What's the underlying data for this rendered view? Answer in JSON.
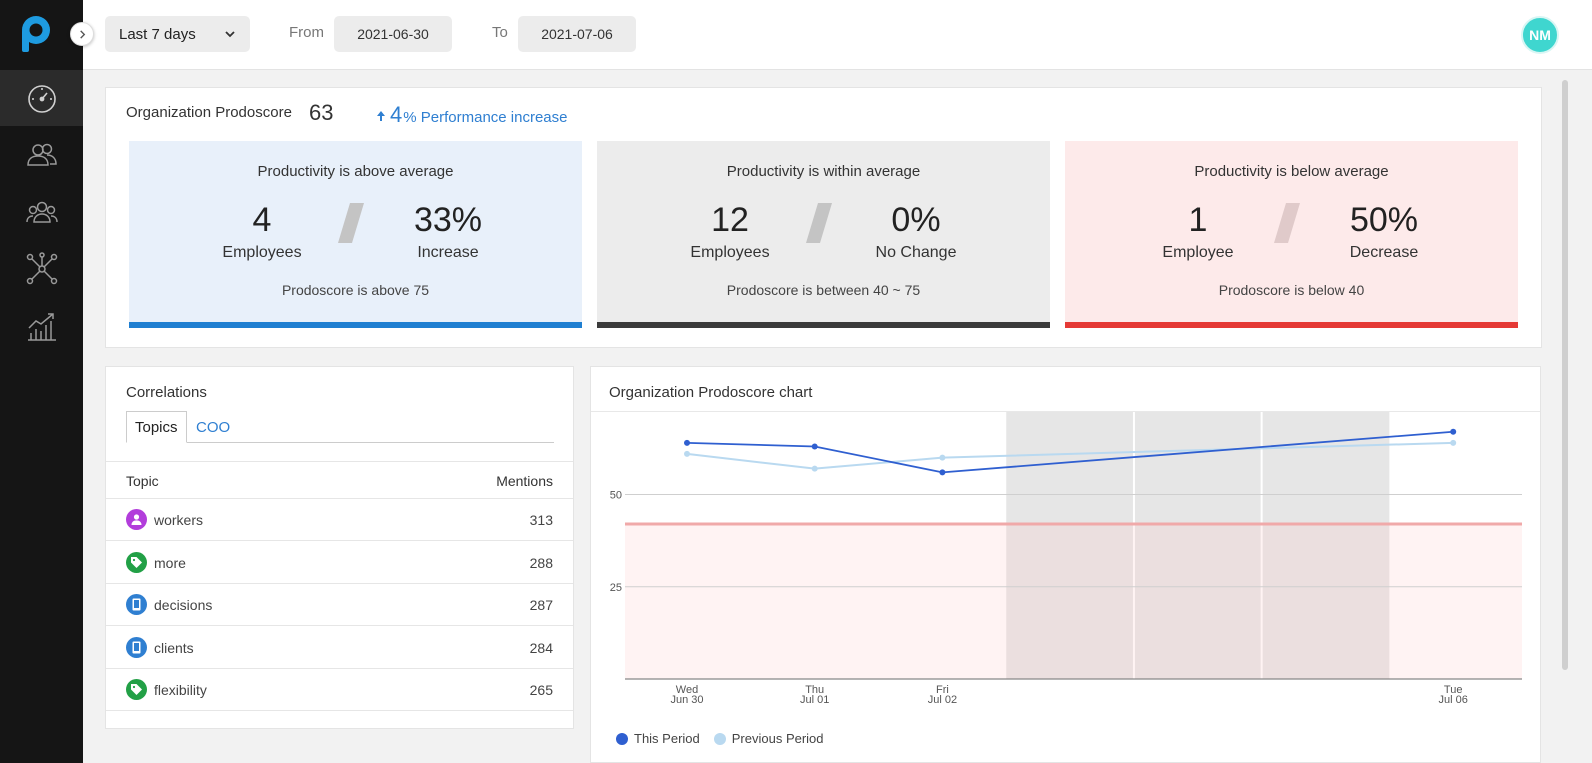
{
  "topbar": {
    "range": "Last 7 days",
    "from_label": "From",
    "from_value": "2021-06-30",
    "to_label": "To",
    "to_value": "2021-07-06",
    "avatar_initials": "NM"
  },
  "sidebar": {
    "items": [
      {
        "icon": "speedometer-icon",
        "active": true
      },
      {
        "icon": "users-icon",
        "active": false
      },
      {
        "icon": "teams-icon",
        "active": false
      },
      {
        "icon": "network-icon",
        "active": false
      },
      {
        "icon": "analytics-icon",
        "active": false
      }
    ]
  },
  "summary": {
    "label": "Organization Prodoscore",
    "score": "63",
    "change_value": "4",
    "change_text": "% Performance increase",
    "cards": [
      {
        "title": "Productivity is above average",
        "count": "4",
        "count_label": "Employees",
        "pct": "33%",
        "pct_label": "Increase",
        "note": "Prodoscore is above 75",
        "bg": "#e8f0fa",
        "bar": "#1f7fd1"
      },
      {
        "title": "Productivity is within average",
        "count": "12",
        "count_label": "Employees",
        "pct": "0%",
        "pct_label": "No Change",
        "note": "Prodoscore is between 40 ~ 75",
        "bg": "#ececec",
        "bar": "#3b3b3b"
      },
      {
        "title": "Productivity is below average",
        "count": "1",
        "count_label": "Employee",
        "pct": "50%",
        "pct_label": "Decrease",
        "note": "Prodoscore is below 40",
        "bg": "#fdeaea",
        "bar": "#e53935"
      }
    ]
  },
  "correlations": {
    "title": "Correlations",
    "tabs": [
      "Topics",
      "COO"
    ],
    "col_topic": "Topic",
    "col_mentions": "Mentions",
    "rows": [
      {
        "name": "workers",
        "count": "313",
        "icon": "person-icon",
        "color": "#b23ddb"
      },
      {
        "name": "more",
        "count": "288",
        "icon": "tag-icon",
        "color": "#22a046"
      },
      {
        "name": "decisions",
        "count": "287",
        "icon": "tablet-icon",
        "color": "#2f7fd1"
      },
      {
        "name": "clients",
        "count": "284",
        "icon": "tablet-icon",
        "color": "#2f7fd1"
      },
      {
        "name": "flexibility",
        "count": "265",
        "icon": "tag-icon",
        "color": "#22a046"
      }
    ]
  },
  "chart": {
    "title": "Organization Prodoscore chart",
    "legend": [
      {
        "name": "This Period",
        "color": "#2f5fd0"
      },
      {
        "name": "Previous Period",
        "color": "#b9d9f0"
      }
    ]
  },
  "chart_data": {
    "type": "line",
    "title": "Organization Prodoscore chart",
    "x": [
      "2021-06-30",
      "2021-07-01",
      "2021-07-02",
      "2021-07-03",
      "2021-07-04",
      "2021-07-05",
      "2021-07-06"
    ],
    "x_tick_labels": [
      {
        "day": "Wed",
        "date": "Jun 30"
      },
      {
        "day": "Thu",
        "date": "Jul 01"
      },
      {
        "day": "Fri",
        "date": "Jul 02"
      },
      {
        "day": "",
        "date": ""
      },
      {
        "day": "",
        "date": ""
      },
      {
        "day": "",
        "date": ""
      },
      {
        "day": "Tue",
        "date": "Jul 06"
      }
    ],
    "y_ticks": [
      "50",
      "25"
    ],
    "ylim": [
      0,
      72
    ],
    "threshold": 42,
    "weekend_shaded": [
      "2021-07-03",
      "2021-07-04",
      "2021-07-05"
    ],
    "series": [
      {
        "name": "This Period",
        "points": [
          {
            "x": "2021-06-30",
            "y": 64
          },
          {
            "x": "2021-07-01",
            "y": 63
          },
          {
            "x": "2021-07-02",
            "y": 56
          },
          {
            "x": "2021-07-06",
            "y": 67
          }
        ]
      },
      {
        "name": "Previous Period",
        "points": [
          {
            "x": "2021-06-30",
            "y": 61
          },
          {
            "x": "2021-07-01",
            "y": 57
          },
          {
            "x": "2021-07-02",
            "y": 60
          },
          {
            "x": "2021-07-06",
            "y": 64
          }
        ]
      }
    ],
    "grid": true,
    "legend_position": "bottom-left"
  }
}
